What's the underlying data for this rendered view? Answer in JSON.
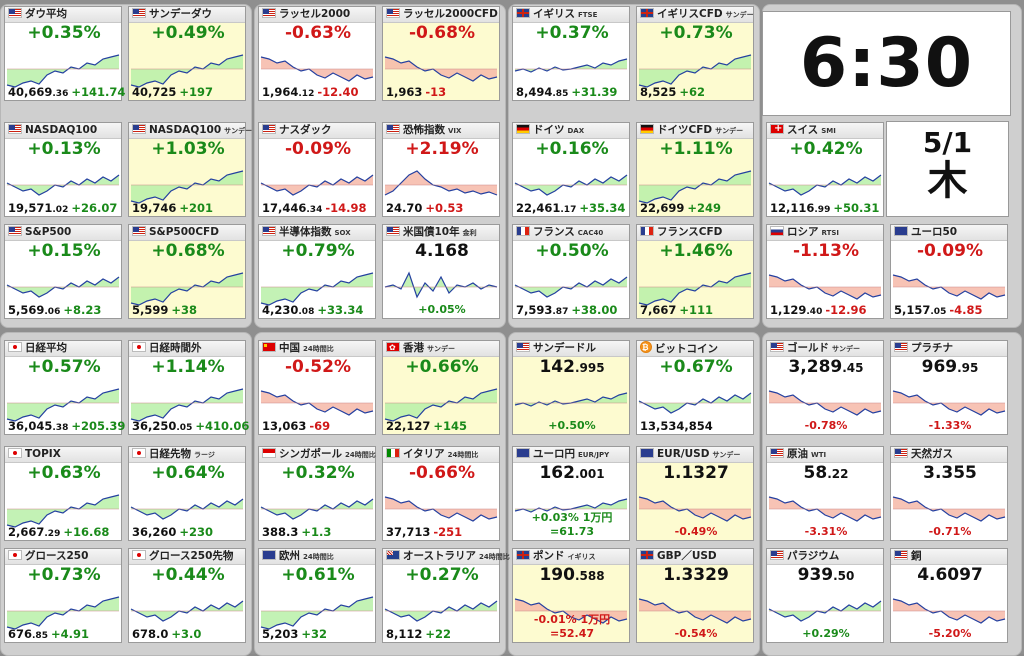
{
  "clock": "6:30",
  "date": "5/1",
  "weekday": "木",
  "tiles": [
    {
      "name": "ダウ平均",
      "flag": "us",
      "chg": "+0.35%",
      "dir": "up",
      "p": "40,669",
      "pd": ".36",
      "pc": "+141.74",
      "pcdir": "up",
      "shape": "up"
    },
    {
      "name": "サンデーダウ",
      "flag": "us",
      "chg": "+0.49%",
      "dir": "up",
      "p": "40,725",
      "pc": "+197",
      "pcdir": "up",
      "shape": "up",
      "hl": true
    },
    {
      "name": "ラッセル2000",
      "flag": "us",
      "chg": "-0.63%",
      "dir": "dn",
      "p": "1,964",
      "pd": ".12",
      "pc": "-12.40",
      "pcdir": "dn",
      "shape": "down"
    },
    {
      "name": "ラッセル2000CFD",
      "flag": "us",
      "chg": "-0.68%",
      "dir": "dn",
      "p": "1,963",
      "pc": "-13",
      "pcdir": "dn",
      "shape": "down",
      "hl": true
    },
    {
      "name": "イギリス",
      "sub": "FTSE",
      "flag": "uk",
      "chg": "+0.37%",
      "dir": "up",
      "p": "8,494",
      "pd": ".85",
      "pc": "+31.39",
      "pcdir": "up",
      "shape": "flatup"
    },
    {
      "name": "イギリスCFD",
      "sub": "サンデー",
      "flag": "uk",
      "chg": "+0.73%",
      "dir": "up",
      "p": "8,525",
      "pc": "+62",
      "pcdir": "up",
      "shape": "up",
      "hl": true
    },
    {
      "name": "NASDAQ100",
      "flag": "us",
      "chg": "+0.13%",
      "dir": "up",
      "p": "19,571",
      "pd": ".02",
      "pc": "+26.07",
      "pcdir": "up",
      "shape": "updown"
    },
    {
      "name": "NASDAQ100",
      "sub": "サンデー",
      "flag": "us",
      "chg": "+1.03%",
      "dir": "up",
      "p": "19,746",
      "pc": "+201",
      "pcdir": "up",
      "shape": "up",
      "hl": true
    },
    {
      "name": "ナスダック",
      "flag": "us",
      "chg": "-0.09%",
      "dir": "dn",
      "p": "17,446",
      "pd": ".34",
      "pc": "-14.98",
      "pcdir": "dn",
      "shape": "updown"
    },
    {
      "name": "恐怖指数",
      "sub": "VIX",
      "flag": "us",
      "chg": "+2.19%",
      "dir": "dn",
      "p": "24.70",
      "pc": "+0.53",
      "pcdir": "dn",
      "shape": "spike"
    },
    {
      "name": "ドイツ",
      "sub": "DAX",
      "flag": "de",
      "chg": "+0.16%",
      "dir": "up",
      "p": "22,461",
      "pd": ".17",
      "pc": "+35.34",
      "pcdir": "up",
      "shape": "updown"
    },
    {
      "name": "ドイツCFD",
      "sub": "サンデー",
      "flag": "de",
      "chg": "+1.11%",
      "dir": "up",
      "p": "22,699",
      "pc": "+249",
      "pcdir": "up",
      "shape": "up",
      "hl": true
    },
    {
      "name": "スイス",
      "sub": "SMI",
      "flag": "ch",
      "chg": "+0.42%",
      "dir": "up",
      "p": "12,116",
      "pd": ".99",
      "pc": "+50.31",
      "pcdir": "up",
      "shape": "updown"
    },
    {
      "name": "S&P500",
      "flag": "us",
      "chg": "+0.15%",
      "dir": "up",
      "p": "5,569",
      "pd": ".06",
      "pc": "+8.23",
      "pcdir": "up",
      "shape": "updown"
    },
    {
      "name": "S&P500CFD",
      "flag": "us",
      "chg": "+0.68%",
      "dir": "up",
      "p": "5,599",
      "pc": "+38",
      "pcdir": "up",
      "shape": "up",
      "hl": true
    },
    {
      "name": "半導体指数",
      "sub": "SOX",
      "flag": "us",
      "chg": "+0.79%",
      "dir": "up",
      "p": "4,230",
      "pd": ".08",
      "pc": "+33.34",
      "pcdir": "up",
      "shape": "up"
    },
    {
      "name": "米国債10年",
      "sub": "金利",
      "flag": "us",
      "big": "4.168",
      "chg": "+0.05%",
      "dir": "up",
      "shape": "spike2",
      "bottom": true
    },
    {
      "name": "フランス",
      "sub": "CAC40",
      "flag": "fr",
      "chg": "+0.50%",
      "dir": "up",
      "p": "7,593",
      "pd": ".87",
      "pc": "+38.00",
      "pcdir": "up",
      "shape": "updown"
    },
    {
      "name": "フランスCFD",
      "flag": "fr",
      "chg": "+1.46%",
      "dir": "up",
      "p": "7,667",
      "pc": "+111",
      "pcdir": "up",
      "shape": "up",
      "hl": true
    },
    {
      "name": "ロシア",
      "sub": "RTSI",
      "flag": "ru",
      "chg": "-1.13%",
      "dir": "dn",
      "p": "1,129",
      "pd": ".40",
      "pc": "-12.96",
      "pcdir": "dn",
      "shape": "down"
    },
    {
      "name": "ユーロ50",
      "flag": "eu",
      "chg": "-0.09%",
      "dir": "dn",
      "p": "5,157",
      "pd": ".05",
      "pc": "-4.85",
      "pcdir": "dn",
      "shape": "down"
    },
    {
      "name": "日経平均",
      "flag": "jp",
      "chg": "+0.57%",
      "dir": "up",
      "p": "36,045",
      "pd": ".38",
      "pc": "+205.39",
      "pcdir": "up",
      "shape": "up"
    },
    {
      "name": "日経時間外",
      "flag": "jp",
      "chg": "+1.14%",
      "dir": "up",
      "p": "36,250",
      "pd": ".05",
      "pc": "+410.06",
      "pcdir": "up",
      "shape": "up"
    },
    {
      "name": "中国",
      "sub": "24時間比",
      "flag": "cn",
      "chg": "-0.52%",
      "dir": "dn",
      "p": "13,063",
      "pc": "-69",
      "pcdir": "dn",
      "shape": "down"
    },
    {
      "name": "香港",
      "sub": "サンデー",
      "flag": "hk",
      "chg": "+0.66%",
      "dir": "up",
      "p": "22,127",
      "pc": "+145",
      "pcdir": "up",
      "shape": "up",
      "hl": true
    },
    {
      "name": "サンデードル",
      "flag": "us",
      "big": "142",
      "bigd": ".995",
      "chg": "+0.50%",
      "dir": "up",
      "shape": "flatup",
      "bottom": true,
      "hl": true
    },
    {
      "name": "ビットコイン",
      "flag": "btc",
      "chg": "+0.67%",
      "dir": "up",
      "p": "13,534,854",
      "pcdir": "up",
      "shape": "updown"
    },
    {
      "name": "ゴールド",
      "sub": "サンデー",
      "flag": "us",
      "big": "3,289",
      "bigd": ".45",
      "chg": "-0.78%",
      "dir": "dn",
      "shape": "down",
      "bottom": true
    },
    {
      "name": "プラチナ",
      "flag": "us",
      "big": "969",
      "bigd": ".95",
      "chg": "-1.33%",
      "dir": "dn",
      "shape": "down",
      "bottom": true
    },
    {
      "name": "TOPIX",
      "flag": "jp",
      "chg": "+0.63%",
      "dir": "up",
      "p": "2,667",
      "pd": ".29",
      "pc": "+16.68",
      "pcdir": "up",
      "shape": "up"
    },
    {
      "name": "日経先物",
      "sub": "ラージ",
      "flag": "jp",
      "chg": "+0.64%",
      "dir": "up",
      "p": "36,260",
      "pc": "+230",
      "pcdir": "up",
      "shape": "updown"
    },
    {
      "name": "シンガポール",
      "sub": "24時間比",
      "flag": "sg",
      "chg": "+0.32%",
      "dir": "up",
      "p": "388.3",
      "pc": "+1.3",
      "pcdir": "up",
      "shape": "updown"
    },
    {
      "name": "イタリア",
      "sub": "24時間比",
      "flag": "it",
      "chg": "-0.66%",
      "dir": "dn",
      "p": "37,713",
      "pc": "-251",
      "pcdir": "dn",
      "shape": "down"
    },
    {
      "name": "ユーロ円",
      "sub": "EUR/JPY",
      "flag": "eu",
      "big": "162",
      "bigd": ".001",
      "chg": "+0.03%",
      "chgx": "1万円=61.73",
      "dir": "up",
      "shape": "flatup",
      "bottom": true
    },
    {
      "name": "EUR/USD",
      "sub": "サンデー",
      "flag": "eu",
      "big": "1.1327",
      "chg": "-0.49%",
      "dir": "dn",
      "shape": "down",
      "bottom": true,
      "hl": true
    },
    {
      "name": "原油",
      "sub": "WTI",
      "flag": "us",
      "big": "58",
      "bigd": ".22",
      "chg": "-3.31%",
      "dir": "dn",
      "shape": "down",
      "bottom": true
    },
    {
      "name": "天然ガス",
      "flag": "us",
      "big": "3.355",
      "chg": "-0.71%",
      "dir": "dn",
      "shape": "down",
      "bottom": true
    },
    {
      "name": "グロース250",
      "flag": "jp",
      "chg": "+0.73%",
      "dir": "up",
      "p": "676",
      "pd": ".85",
      "pc": "+4.91",
      "pcdir": "up",
      "shape": "up"
    },
    {
      "name": "グロース250先物",
      "flag": "jp",
      "chg": "+0.44%",
      "dir": "up",
      "p": "678.0",
      "pc": "+3.0",
      "pcdir": "up",
      "shape": "updown"
    },
    {
      "name": "欧州",
      "sub": "24時間比",
      "flag": "eu",
      "chg": "+0.61%",
      "dir": "up",
      "p": "5,203",
      "pc": "+32",
      "pcdir": "up",
      "shape": "up"
    },
    {
      "name": "オーストラリア",
      "sub": "24時間比",
      "flag": "au",
      "chg": "+0.27%",
      "dir": "up",
      "p": "8,112",
      "pc": "+22",
      "pcdir": "up",
      "shape": "updown"
    },
    {
      "name": "ポンド",
      "sub": "イギリス",
      "flag": "uk",
      "big": "190",
      "bigd": ".588",
      "chg": "-0.01%",
      "chgx": "1万円=52.47",
      "dir": "dn",
      "shape": "down",
      "bottom": true,
      "hl": true
    },
    {
      "name": "GBP／USD",
      "flag": "uk",
      "big": "1.3329",
      "chg": "-0.54%",
      "dir": "dn",
      "shape": "down",
      "bottom": true,
      "hl": true
    },
    {
      "name": "パラジウム",
      "flag": "us",
      "big": "939",
      "bigd": ".50",
      "chg": "+0.29%",
      "dir": "up",
      "shape": "updown",
      "bottom": true
    },
    {
      "name": "銅",
      "flag": "us",
      "big": "4.6097",
      "chg": "-5.20%",
      "dir": "dn",
      "shape": "down",
      "bottom": true
    }
  ]
}
